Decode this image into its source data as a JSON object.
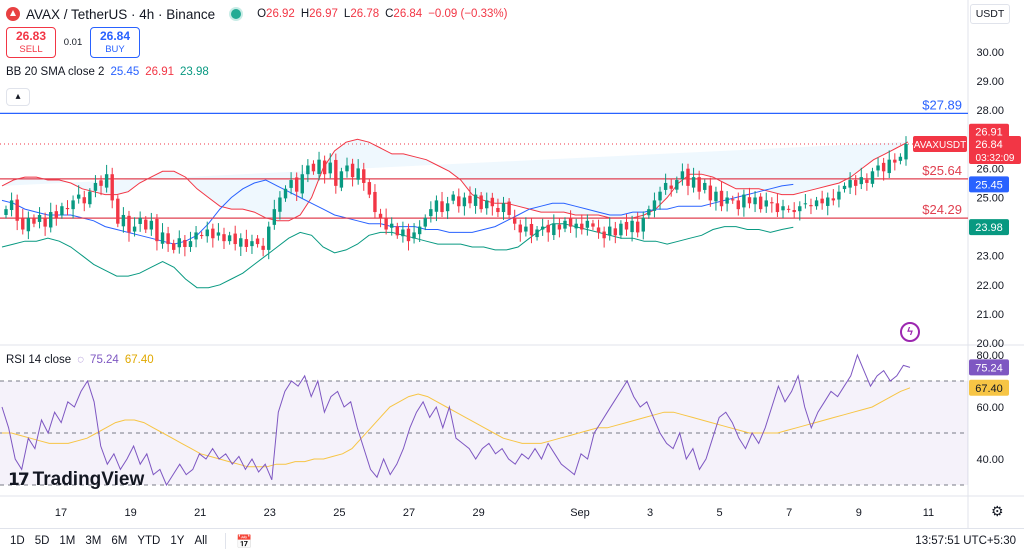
{
  "header": {
    "symbol_title": "AVAX / TetherUS · 4h · Binance",
    "logo_icon": "avax-logo-icon",
    "open_label": "O",
    "open": "26.92",
    "high_label": "H",
    "high": "26.97",
    "low_label": "L",
    "low": "26.78",
    "close_label": "C",
    "close": "26.84",
    "change": "−0.09 (−0.33%)"
  },
  "trade": {
    "sell_price": "26.83",
    "sell_label": "SELL",
    "spread": "0.01",
    "buy_price": "26.84",
    "buy_label": "BUY"
  },
  "bb_legend": {
    "name": "BB 20 SMA close 2",
    "basis": "25.45",
    "upper": "26.91",
    "lower": "23.98"
  },
  "rsi_legend": {
    "name": "RSI 14 close",
    "rsi": "75.24",
    "ma": "67.40"
  },
  "currency_unit": "USDT",
  "tv_logo_text": "TradingView",
  "time_ranges": [
    "1D",
    "5D",
    "1M",
    "3M",
    "6M",
    "YTD",
    "1Y",
    "All"
  ],
  "clock": "13:57:51 UTC+5:30",
  "colors": {
    "up": "#089981",
    "down": "#f23645",
    "bb_upper": "#f23645",
    "bb_basis": "#2962ff",
    "bb_lower": "#089981",
    "rsi": "#7e57c2",
    "rsi_ma": "#f7c545",
    "hline_blue": "#2962ff",
    "hline_red": "#e04050"
  },
  "chart_data": [
    {
      "type": "candlestick",
      "symbol": "AVAXUSDT",
      "ylim": [
        20,
        30.5
      ],
      "price_ticks": [
        "30.00",
        "29.00",
        "28.00",
        "27.00",
        "26.00",
        "25.00",
        "24.00",
        "23.00",
        "22.00",
        "21.00",
        "20.00"
      ],
      "date_ticks": [
        "17",
        "19",
        "21",
        "23",
        "25",
        "27",
        "29",
        "Sep",
        "3",
        "5",
        "7",
        "9",
        "11"
      ],
      "horizontal_lines": [
        {
          "value": 27.89,
          "label": "$27.89",
          "color": "#2962ff"
        },
        {
          "value": 25.64,
          "label": "$25.64",
          "color": "#e04050"
        },
        {
          "value": 24.29,
          "label": "$24.29",
          "color": "#e04050"
        }
      ],
      "last_price": {
        "value": 26.84,
        "label": "AVAXUSDT",
        "price": "26.84",
        "countdown": "03:32:09"
      },
      "bb_labels": {
        "upper": "26.91",
        "basis": "25.45",
        "lower": "23.98"
      },
      "close": [
        24.6,
        24.9,
        24.2,
        23.9,
        24.3,
        24.1,
        24.4,
        24.0,
        24.5,
        24.3,
        24.7,
        24.6,
        24.9,
        25.1,
        24.8,
        25.2,
        25.5,
        25.4,
        25.8,
        24.9,
        24.1,
        24.4,
        23.8,
        24.0,
        24.3,
        23.9,
        24.2,
        23.5,
        23.8,
        23.4,
        23.2,
        23.6,
        23.3,
        23.5,
        23.8,
        23.7,
        23.9,
        23.6,
        23.8,
        23.5,
        23.7,
        23.4,
        23.6,
        23.3,
        23.5,
        23.4,
        23.2,
        24.0,
        24.6,
        25.0,
        25.3,
        25.6,
        25.2,
        25.8,
        26.1,
        25.9,
        26.3,
        25.8,
        26.2,
        25.4,
        25.9,
        26.1,
        25.7,
        26.0,
        25.5,
        25.1,
        24.5,
        24.3,
        23.9,
        24.1,
        23.7,
        23.9,
        23.5,
        23.8,
        24.0,
        24.3,
        24.6,
        24.9,
        24.5,
        24.8,
        25.1,
        24.7,
        25.0,
        24.8,
        25.1,
        24.6,
        24.9,
        24.7,
        24.5,
        24.8,
        24.4,
        24.1,
        23.8,
        24.0,
        23.7,
        23.9,
        24.0,
        23.8,
        24.1,
        23.9,
        24.2,
        24.0,
        24.1,
        23.9,
        24.2,
        24.0,
        23.8,
        23.6,
        24.0,
        23.7,
        24.1,
        23.9,
        24.2,
        23.8,
        24.3,
        24.6,
        24.9,
        25.2,
        25.5,
        25.3,
        25.6,
        25.9,
        25.4,
        25.7,
        25.2,
        25.5,
        24.9,
        25.2,
        24.7,
        25.0,
        24.9,
        24.6,
        25.1,
        24.8,
        25.0,
        24.6,
        24.9,
        24.8,
        24.5,
        24.7,
        24.6,
        24.5,
        24.7,
        24.8,
        24.7,
        24.9,
        24.8,
        25.0,
        24.9,
        25.2,
        25.4,
        25.6,
        25.4,
        25.7,
        25.5,
        25.9,
        26.1,
        25.9,
        26.3,
        26.2,
        26.4,
        26.84
      ],
      "bb_upper": [
        25.4,
        25.6,
        25.7,
        25.7,
        25.6,
        25.6,
        25.5,
        25.3,
        25.2,
        25.1,
        25.1,
        25.2,
        25.5,
        25.7,
        25.9,
        25.9,
        25.7,
        25.3,
        25.0,
        24.7,
        24.6,
        24.6,
        24.5,
        24.3,
        24.2,
        24.2,
        24.4,
        25.0,
        26.0,
        26.6,
        26.9,
        27.0,
        26.9,
        26.7,
        26.5,
        26.5,
        26.4,
        26.3,
        26.1,
        25.9,
        25.6,
        25.1,
        24.9,
        24.8,
        24.8,
        24.7,
        24.6,
        24.5,
        24.5,
        24.5,
        24.4,
        24.4,
        24.4,
        24.3,
        24.3,
        24.3,
        24.4,
        24.6,
        25.0,
        25.5,
        25.8,
        25.8,
        25.7,
        25.5,
        25.3,
        25.3,
        25.3,
        25.2,
        25.1,
        25.1,
        25.2,
        25.3,
        25.4,
        25.5,
        25.7,
        26.0,
        26.3,
        26.5,
        26.7,
        26.91
      ],
      "bb_basis": [
        24.9,
        24.8,
        24.6,
        24.5,
        24.4,
        24.4,
        24.4,
        24.3,
        24.2,
        24.0,
        23.9,
        23.8,
        23.7,
        23.6,
        23.5,
        23.4,
        23.5,
        23.7,
        24.1,
        24.6,
        25.0,
        25.3,
        25.5,
        25.6,
        25.4,
        25.2,
        25.0,
        24.8,
        24.6,
        24.4,
        24.3,
        24.2,
        24.1,
        24.1,
        24.0,
        24.0,
        24.0,
        23.9,
        23.9,
        23.8,
        23.8,
        23.8,
        23.9,
        24.0,
        24.2,
        24.4,
        24.6,
        24.7,
        24.8,
        24.8,
        24.7,
        24.6,
        24.5,
        24.4,
        24.4,
        24.5,
        24.5,
        24.6,
        24.6,
        24.7,
        24.7,
        24.7,
        24.8,
        24.9,
        25.0,
        25.1,
        25.2,
        25.3,
        25.4,
        25.45
      ],
      "bb_lower": [
        23.3,
        23.4,
        23.5,
        23.5,
        23.6,
        23.5,
        23.3,
        23.0,
        22.7,
        22.5,
        22.3,
        22.3,
        22.4,
        22.6,
        22.8,
        22.6,
        22.2,
        21.9,
        21.9,
        22.0,
        22.2,
        22.4,
        22.7,
        23.0,
        23.3,
        23.6,
        23.8,
        23.7,
        23.3,
        23.1,
        23.2,
        23.4,
        23.7,
        23.8,
        23.8,
        23.7,
        23.6,
        23.5,
        23.4,
        23.4,
        23.4,
        23.3,
        23.3,
        23.2,
        23.2,
        23.3,
        23.6,
        23.9,
        24.1,
        24.1,
        24.0,
        23.9,
        23.8,
        23.7,
        23.6,
        23.6,
        23.5,
        23.5,
        23.4,
        23.5,
        23.6,
        23.7,
        23.9,
        24.0,
        24.0,
        23.9,
        23.9,
        23.8,
        23.9,
        23.98
      ]
    },
    {
      "type": "line",
      "name": "RSI 14 close",
      "ylim": [
        30,
        85
      ],
      "ticks": [
        "80.00",
        "60.00",
        "40.00"
      ],
      "overbought": 70,
      "middle": 50,
      "oversold": 30,
      "series": [
        {
          "name": "RSI",
          "values": [
            60,
            52,
            40,
            36,
            48,
            44,
            55,
            50,
            58,
            54,
            62,
            60,
            66,
            70,
            62,
            45,
            38,
            42,
            36,
            40,
            45,
            38,
            42,
            34,
            36,
            30,
            34,
            38,
            34,
            36,
            42,
            40,
            44,
            40,
            42,
            38,
            41,
            36,
            40,
            35,
            38,
            32,
            58,
            66,
            70,
            68,
            72,
            64,
            70,
            58,
            64,
            66,
            60,
            62,
            52,
            44,
            36,
            33,
            40,
            34,
            38,
            44,
            52,
            58,
            62,
            56,
            60,
            52,
            60,
            48,
            46,
            44,
            40,
            44,
            46,
            42,
            44,
            40,
            38,
            42,
            40,
            44,
            40,
            46,
            42,
            38,
            36,
            34,
            42,
            40,
            50,
            54,
            58,
            62,
            66,
            70,
            64,
            60,
            62,
            56,
            50,
            46,
            44,
            50,
            40,
            44,
            36,
            40,
            48,
            56,
            58,
            54,
            48,
            44,
            50,
            46,
            52,
            60,
            68,
            62,
            66,
            72,
            60,
            52,
            58,
            62,
            66,
            64,
            68,
            72,
            80,
            74,
            68,
            72,
            74,
            70,
            72,
            76,
            75.24
          ]
        },
        {
          "name": "MA",
          "values": [
            50,
            50,
            49,
            48,
            47,
            46,
            46,
            46,
            47,
            48,
            50,
            52,
            54,
            55,
            55,
            54,
            52,
            50,
            48,
            46,
            44,
            42,
            41,
            40,
            39,
            38,
            37,
            37,
            37,
            38,
            38,
            39,
            39,
            40,
            40,
            41,
            42,
            44,
            48,
            52,
            56,
            60,
            62,
            64,
            65,
            64,
            62,
            60,
            58,
            56,
            54,
            52,
            50,
            48,
            47,
            46,
            46,
            46,
            47,
            48,
            49,
            50,
            51,
            52,
            52,
            53,
            54,
            55,
            56,
            57,
            58,
            58,
            57,
            56,
            55,
            54,
            53,
            52,
            51,
            50,
            50,
            50,
            50,
            51,
            52,
            53,
            54,
            55,
            56,
            57,
            58,
            59,
            60,
            62,
            64,
            66,
            67.4
          ]
        }
      ]
    }
  ]
}
